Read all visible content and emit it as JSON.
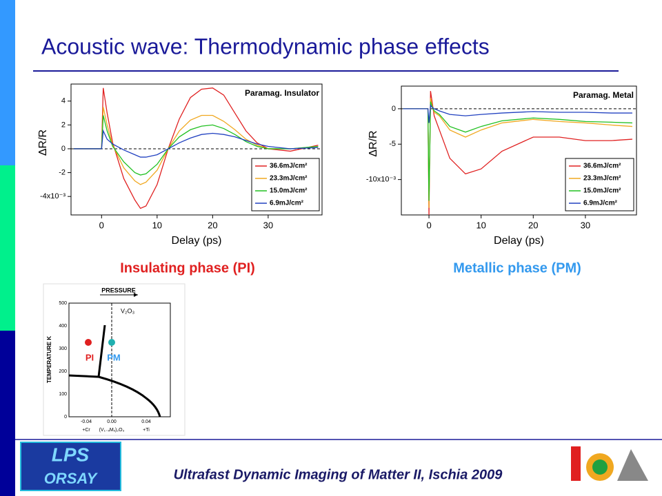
{
  "title": "Acoustic wave: Thermodynamic phase effects",
  "chart_data": [
    {
      "type": "line",
      "annotation": "Paramag. Insulator",
      "x_label": "Delay (ps)",
      "y_label": "ΔR/R",
      "x": [
        -5,
        -1,
        0,
        0.3,
        1,
        2,
        4,
        6,
        7,
        8,
        10,
        12,
        14,
        16,
        18,
        20,
        22,
        24,
        26,
        28,
        30,
        34,
        39
      ],
      "series": [
        {
          "name": "36.6mJ/cm²",
          "color": "#e02020",
          "values": [
            0,
            0,
            0,
            5.1,
            3,
            0.5,
            -2.5,
            -4.3,
            -5,
            -4.8,
            -3,
            0,
            2.5,
            4.3,
            5,
            5.1,
            4.5,
            3,
            1.5,
            0.5,
            0,
            -0.2,
            0.3
          ]
        },
        {
          "name": "23.3mJ/cm²",
          "color": "#f0a820",
          "values": [
            0,
            0,
            0,
            3.5,
            2,
            0.3,
            -1.6,
            -2.7,
            -3,
            -2.8,
            -1.8,
            0,
            1.5,
            2.4,
            2.8,
            2.8,
            2.3,
            1.6,
            0.8,
            0.3,
            0,
            0,
            0.2
          ]
        },
        {
          "name": "15.0mJ/cm²",
          "color": "#20c020",
          "values": [
            0,
            0,
            0,
            2.8,
            1.5,
            0.2,
            -1.1,
            -2,
            -2.2,
            -2.1,
            -1.3,
            0,
            1,
            1.6,
            1.9,
            2,
            1.7,
            1.2,
            0.6,
            0.2,
            0,
            0,
            0.2
          ]
        },
        {
          "name": "6.9mJ/cm²",
          "color": "#2040c0",
          "values": [
            0,
            0,
            0,
            1.5,
            0.8,
            0.4,
            -0.1,
            -0.5,
            -0.7,
            -0.7,
            -0.5,
            0,
            0.5,
            0.9,
            1.2,
            1.3,
            1.2,
            1,
            0.7,
            0.4,
            0.2,
            0,
            0.1
          ]
        }
      ],
      "xlim": [
        -5.5,
        39.7
      ],
      "ylim": [
        -5.55,
        5.43
      ],
      "xticks": [
        0,
        10,
        20,
        30
      ],
      "yticks": [
        4,
        2,
        0,
        -2,
        {
          "value": -4,
          "label": "-4x10⁻³"
        }
      ],
      "legend": "lower right"
    },
    {
      "type": "line",
      "annotation": "Paramag. Metal",
      "x_label": "Delay (ps)",
      "y_label": "ΔR/R",
      "x": [
        -5,
        -0.2,
        0,
        0.3,
        0.6,
        1,
        2,
        4,
        7,
        10,
        14,
        20,
        25,
        30,
        35,
        39
      ],
      "series": [
        {
          "name": "36.6mJ/cm²",
          "color": "#e02020",
          "values": [
            0,
            0,
            -15,
            2.5,
            1,
            -1,
            -3,
            -7,
            -9.2,
            -8.5,
            -6,
            -4,
            -4,
            -4.5,
            -4.5,
            -4.3
          ]
        },
        {
          "name": "23.3mJ/cm²",
          "color": "#f0a820",
          "values": [
            0,
            0,
            -14,
            1.5,
            0.5,
            -0.5,
            -1,
            -3,
            -4,
            -3,
            -2,
            -1.5,
            -1.8,
            -2,
            -2.3,
            -2.5
          ]
        },
        {
          "name": "15.0mJ/cm²",
          "color": "#20c020",
          "values": [
            0,
            0,
            -13,
            1,
            0.3,
            -0.3,
            -0.8,
            -2.5,
            -3.3,
            -2.5,
            -1.7,
            -1.3,
            -1.5,
            -1.8,
            -1.9,
            -2
          ]
        },
        {
          "name": "6.9mJ/cm²",
          "color": "#2040c0",
          "values": [
            0,
            0,
            -2,
            0.5,
            0.2,
            0,
            -0.3,
            -0.8,
            -1,
            -0.8,
            -0.6,
            -0.4,
            -0.5,
            -0.5,
            -0.6,
            -0.6
          ]
        }
      ],
      "xlim": [
        -5.3,
        39.8
      ],
      "ylim": [
        -15,
        3.2
      ],
      "xticks": [
        0,
        10,
        20,
        30
      ],
      "yticks": [
        0,
        -5,
        {
          "value": -10,
          "label": "-10x10⁻³"
        }
      ],
      "legend": "lower right"
    }
  ],
  "captions": {
    "insulating": "Insulating phase (PI)",
    "metallic": "Metallic phase (PM)"
  },
  "phase_diagram": {
    "pressure": "PRESSURE",
    "compound": "V₂O₃",
    "y_label": "TEMPERATURE K",
    "yticks": [
      "500",
      "400",
      "300",
      "200",
      "100",
      "0"
    ],
    "xticks": [
      "-0.04",
      "0.00",
      "0.04"
    ],
    "x_labels": [
      "+Cr",
      "(V₁₋ₓMₓ)₂O₃",
      "+Ti"
    ],
    "pi": "PI",
    "pm": "PM"
  },
  "footer": {
    "text": "Ultrafast Dynamic Imaging of Matter II, Ischia 2009",
    "logo_top": "LPS",
    "logo_bottom": "ORSAY"
  }
}
